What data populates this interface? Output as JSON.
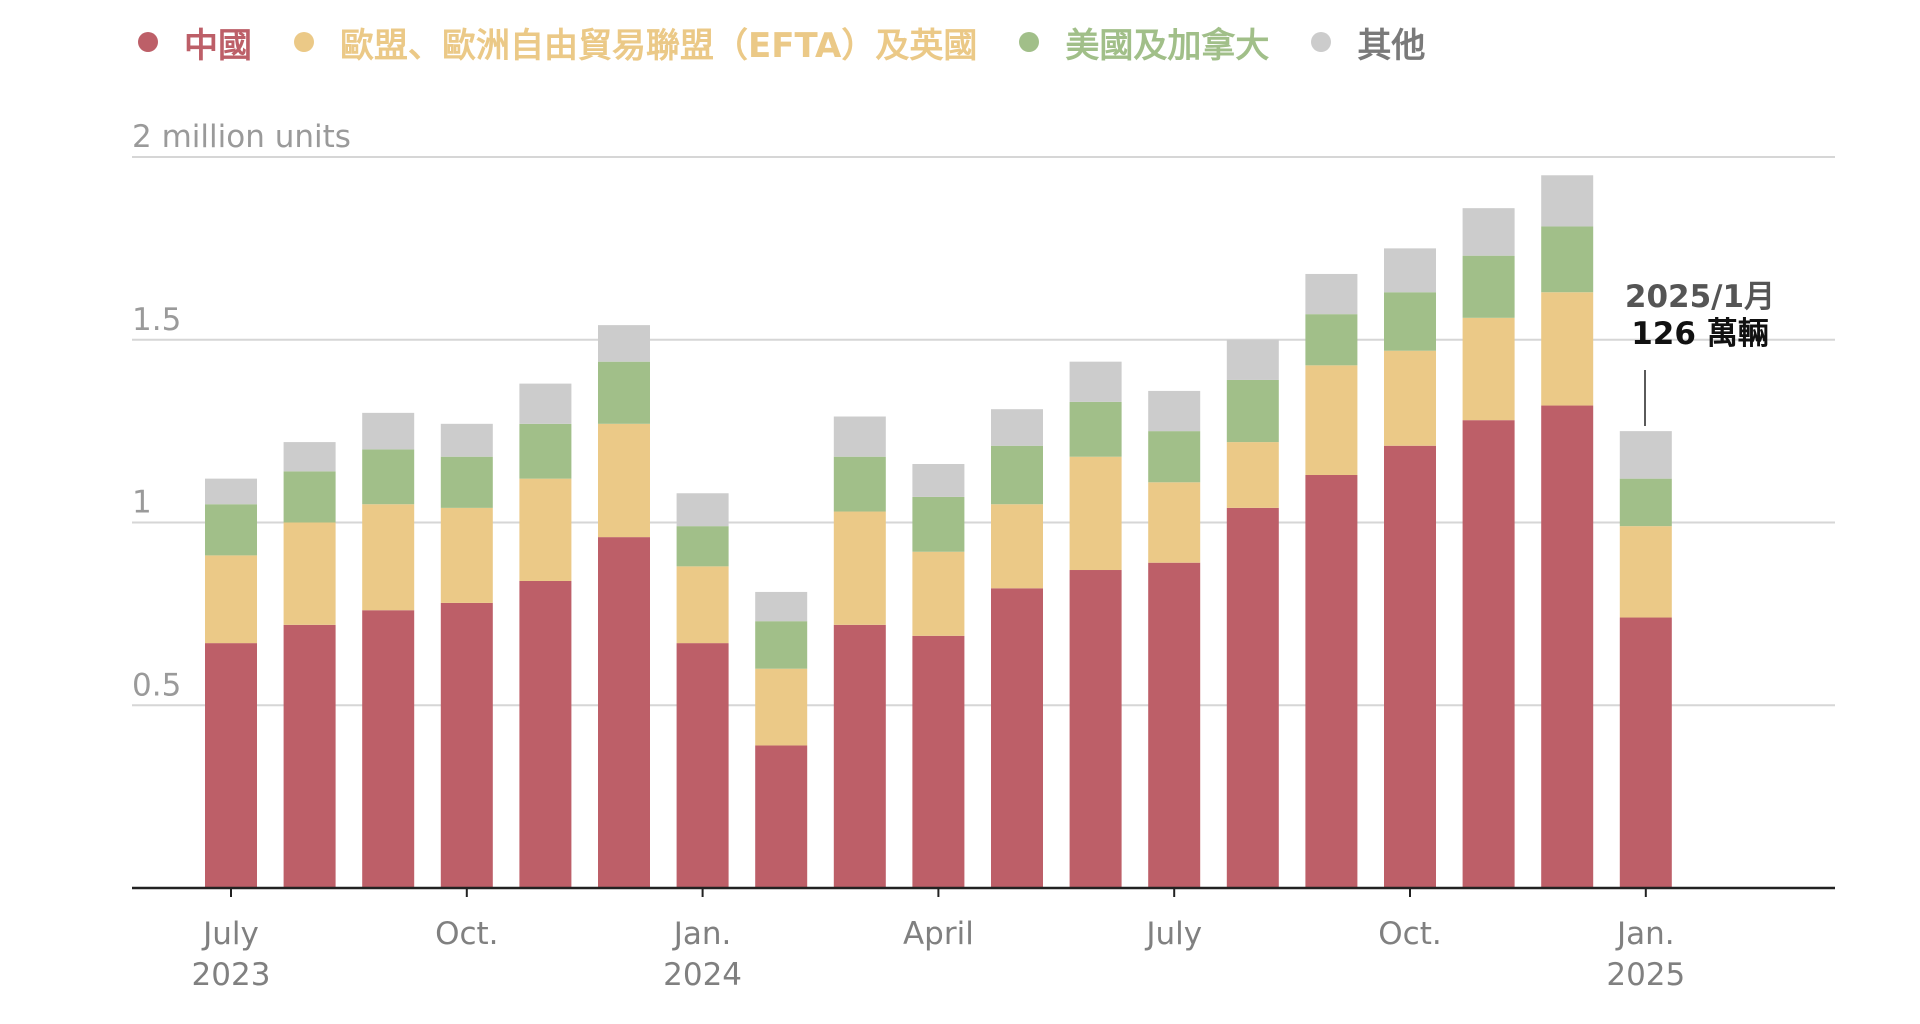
{
  "legend": [
    {
      "label": "中國",
      "color": "#bd5f68"
    },
    {
      "label": "歐盟、歐洲自由貿易聯盟（EFTA）及英國",
      "color": "#ebc987"
    },
    {
      "label": "美國及加拿大",
      "color": "#a1bf89"
    },
    {
      "label": "其他",
      "color": "#cccccc"
    }
  ],
  "annotation": {
    "line1": "2025/1月",
    "line2": "126 萬輛"
  },
  "chart_data": {
    "type": "bar",
    "stacked": true,
    "categories": [
      "2023-07",
      "2023-08",
      "2023-09",
      "2023-10",
      "2023-11",
      "2023-12",
      "2024-01",
      "2024-02",
      "2024-03",
      "2024-04",
      "2024-05",
      "2024-06",
      "2024-07",
      "2024-08",
      "2024-09",
      "2024-10",
      "2024-11",
      "2024-12",
      "2025-01"
    ],
    "series": [
      {
        "name": "中國",
        "color": "#bd5f68",
        "values": [
          0.67,
          0.72,
          0.76,
          0.78,
          0.84,
          0.96,
          0.67,
          0.39,
          0.72,
          0.69,
          0.82,
          0.87,
          0.89,
          1.04,
          1.13,
          1.21,
          1.28,
          1.32,
          0.74
        ]
      },
      {
        "name": "歐盟、歐洲自由貿易聯盟（EFTA）及英國",
        "color": "#ebc987",
        "values": [
          0.24,
          0.28,
          0.29,
          0.26,
          0.28,
          0.31,
          0.21,
          0.21,
          0.31,
          0.23,
          0.23,
          0.31,
          0.22,
          0.18,
          0.3,
          0.26,
          0.28,
          0.31,
          0.25
        ]
      },
      {
        "name": "美國及加拿大",
        "color": "#a1bf89",
        "values": [
          0.14,
          0.14,
          0.15,
          0.14,
          0.15,
          0.17,
          0.11,
          0.13,
          0.15,
          0.15,
          0.16,
          0.15,
          0.14,
          0.17,
          0.14,
          0.16,
          0.17,
          0.18,
          0.13
        ]
      },
      {
        "name": "其他",
        "color": "#cccccc",
        "values": [
          0.07,
          0.08,
          0.1,
          0.09,
          0.11,
          0.1,
          0.09,
          0.08,
          0.11,
          0.09,
          0.1,
          0.11,
          0.11,
          0.11,
          0.11,
          0.12,
          0.13,
          0.14,
          0.13
        ]
      }
    ],
    "y_ticks": [
      {
        "value": 2,
        "label": "2 million units"
      },
      {
        "value": 1.5,
        "label": "1.5"
      },
      {
        "value": 1,
        "label": "1"
      },
      {
        "value": 0.5,
        "label": "0.5"
      }
    ],
    "x_labels": [
      {
        "index": 0,
        "line1": "July",
        "line2": "2023"
      },
      {
        "index": 3,
        "line1": "Oct.",
        "line2": ""
      },
      {
        "index": 6,
        "line1": "Jan.",
        "line2": "2024"
      },
      {
        "index": 9,
        "line1": "April",
        "line2": ""
      },
      {
        "index": 12,
        "line1": "July",
        "line2": ""
      },
      {
        "index": 15,
        "line1": "Oct.",
        "line2": ""
      },
      {
        "index": 18,
        "line1": "Jan.",
        "line2": "2025"
      }
    ],
    "ylim": [
      0,
      2
    ],
    "grid": true,
    "legend_position": "top"
  }
}
